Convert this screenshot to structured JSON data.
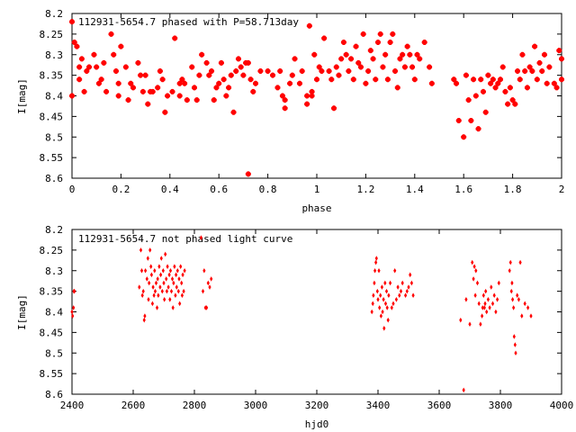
{
  "chart_data": [
    {
      "type": "scatter",
      "title": "112931-5654.7 phased with P=58.713day",
      "xlabel": "phase",
      "ylabel": "I[mag]",
      "xlim": [
        0,
        2
      ],
      "ylim": [
        8.6,
        8.2
      ],
      "y_inverted": true,
      "grid": false,
      "marker_color": "#ff0000",
      "marker": "filled-diamond",
      "x_ticks": [
        "0",
        "0.2",
        "0.4",
        "0.6",
        "0.8",
        "1",
        "1.2",
        "1.4",
        "1.6",
        "1.8",
        "2"
      ],
      "y_ticks": [
        "8.2",
        "8.25",
        "8.3",
        "8.35",
        "8.4",
        "8.45",
        "8.5",
        "8.55",
        "8.6"
      ],
      "points": [
        [
          0.0,
          8.22
        ],
        [
          0.0,
          8.4
        ],
        [
          0.01,
          8.27
        ],
        [
          0.02,
          8.28
        ],
        [
          0.03,
          8.33
        ],
        [
          0.03,
          8.36
        ],
        [
          0.04,
          8.31
        ],
        [
          0.05,
          8.39
        ],
        [
          0.06,
          8.34
        ],
        [
          0.07,
          8.33
        ],
        [
          0.09,
          8.3
        ],
        [
          0.1,
          8.33
        ],
        [
          0.11,
          8.37
        ],
        [
          0.12,
          8.36
        ],
        [
          0.13,
          8.32
        ],
        [
          0.14,
          8.39
        ],
        [
          0.16,
          8.25
        ],
        [
          0.17,
          8.3
        ],
        [
          0.18,
          8.34
        ],
        [
          0.19,
          8.37
        ],
        [
          0.19,
          8.4
        ],
        [
          0.2,
          8.28
        ],
        [
          0.22,
          8.33
        ],
        [
          0.23,
          8.41
        ],
        [
          0.24,
          8.37
        ],
        [
          0.25,
          8.38
        ],
        [
          0.27,
          8.32
        ],
        [
          0.28,
          8.35
        ],
        [
          0.29,
          8.39
        ],
        [
          0.3,
          8.35
        ],
        [
          0.31,
          8.42
        ],
        [
          0.32,
          8.39
        ],
        [
          0.33,
          8.39
        ],
        [
          0.35,
          8.38
        ],
        [
          0.36,
          8.34
        ],
        [
          0.37,
          8.36
        ],
        [
          0.38,
          8.44
        ],
        [
          0.39,
          8.4
        ],
        [
          0.41,
          8.39
        ],
        [
          0.42,
          8.26
        ],
        [
          0.44,
          8.37
        ],
        [
          0.44,
          8.4
        ],
        [
          0.45,
          8.36
        ],
        [
          0.46,
          8.37
        ],
        [
          0.47,
          8.41
        ],
        [
          0.49,
          8.33
        ],
        [
          0.5,
          8.38
        ],
        [
          0.51,
          8.41
        ],
        [
          0.52,
          8.35
        ],
        [
          0.53,
          8.3
        ],
        [
          0.55,
          8.32
        ],
        [
          0.56,
          8.35
        ],
        [
          0.57,
          8.34
        ],
        [
          0.58,
          8.41
        ],
        [
          0.59,
          8.38
        ],
        [
          0.6,
          8.37
        ],
        [
          0.61,
          8.32
        ],
        [
          0.62,
          8.36
        ],
        [
          0.63,
          8.4
        ],
        [
          0.64,
          8.38
        ],
        [
          0.65,
          8.35
        ],
        [
          0.66,
          8.44
        ],
        [
          0.67,
          8.34
        ],
        [
          0.68,
          8.31
        ],
        [
          0.69,
          8.33
        ],
        [
          0.7,
          8.35
        ],
        [
          0.71,
          8.32
        ],
        [
          0.72,
          8.32
        ],
        [
          0.72,
          8.59
        ],
        [
          0.73,
          8.36
        ],
        [
          0.74,
          8.39
        ],
        [
          0.75,
          8.37
        ],
        [
          0.77,
          8.34
        ],
        [
          0.8,
          8.34
        ],
        [
          0.82,
          8.35
        ],
        [
          0.84,
          8.38
        ],
        [
          0.85,
          8.34
        ],
        [
          0.86,
          8.4
        ],
        [
          0.87,
          8.41
        ],
        [
          0.87,
          8.43
        ],
        [
          0.89,
          8.37
        ],
        [
          0.9,
          8.35
        ],
        [
          0.91,
          8.31
        ],
        [
          0.93,
          8.37
        ],
        [
          0.94,
          8.34
        ],
        [
          0.96,
          8.4
        ],
        [
          0.96,
          8.42
        ],
        [
          0.97,
          8.23
        ],
        [
          0.98,
          8.4
        ],
        [
          0.98,
          8.39
        ],
        [
          0.99,
          8.3
        ],
        [
          1.0,
          8.36
        ],
        [
          1.01,
          8.33
        ],
        [
          1.02,
          8.34
        ],
        [
          1.03,
          8.26
        ],
        [
          1.05,
          8.34
        ],
        [
          1.06,
          8.36
        ],
        [
          1.07,
          8.43
        ],
        [
          1.08,
          8.33
        ],
        [
          1.09,
          8.35
        ],
        [
          1.1,
          8.31
        ],
        [
          1.11,
          8.27
        ],
        [
          1.12,
          8.3
        ],
        [
          1.13,
          8.34
        ],
        [
          1.14,
          8.31
        ],
        [
          1.15,
          8.36
        ],
        [
          1.16,
          8.28
        ],
        [
          1.17,
          8.32
        ],
        [
          1.18,
          8.33
        ],
        [
          1.19,
          8.25
        ],
        [
          1.2,
          8.37
        ],
        [
          1.21,
          8.34
        ],
        [
          1.22,
          8.29
        ],
        [
          1.23,
          8.31
        ],
        [
          1.24,
          8.36
        ],
        [
          1.25,
          8.27
        ],
        [
          1.26,
          8.25
        ],
        [
          1.27,
          8.33
        ],
        [
          1.28,
          8.3
        ],
        [
          1.29,
          8.36
        ],
        [
          1.3,
          8.27
        ],
        [
          1.31,
          8.25
        ],
        [
          1.32,
          8.34
        ],
        [
          1.33,
          8.38
        ],
        [
          1.34,
          8.31
        ],
        [
          1.35,
          8.3
        ],
        [
          1.36,
          8.33
        ],
        [
          1.37,
          8.28
        ],
        [
          1.38,
          8.3
        ],
        [
          1.39,
          8.33
        ],
        [
          1.4,
          8.36
        ],
        [
          1.41,
          8.3
        ],
        [
          1.42,
          8.31
        ],
        [
          1.44,
          8.27
        ],
        [
          1.46,
          8.33
        ],
        [
          1.47,
          8.37
        ],
        [
          1.56,
          8.36
        ],
        [
          1.57,
          8.37
        ],
        [
          1.58,
          8.46
        ],
        [
          1.6,
          8.5
        ],
        [
          1.61,
          8.35
        ],
        [
          1.62,
          8.41
        ],
        [
          1.63,
          8.46
        ],
        [
          1.64,
          8.36
        ],
        [
          1.65,
          8.4
        ],
        [
          1.66,
          8.48
        ],
        [
          1.67,
          8.36
        ],
        [
          1.68,
          8.39
        ],
        [
          1.69,
          8.44
        ],
        [
          1.7,
          8.35
        ],
        [
          1.71,
          8.37
        ],
        [
          1.72,
          8.36
        ],
        [
          1.73,
          8.38
        ],
        [
          1.74,
          8.37
        ],
        [
          1.75,
          8.36
        ],
        [
          1.76,
          8.33
        ],
        [
          1.77,
          8.39
        ],
        [
          1.78,
          8.42
        ],
        [
          1.79,
          8.38
        ],
        [
          1.8,
          8.41
        ],
        [
          1.81,
          8.42
        ],
        [
          1.82,
          8.34
        ],
        [
          1.83,
          8.36
        ],
        [
          1.84,
          8.3
        ],
        [
          1.85,
          8.34
        ],
        [
          1.86,
          8.38
        ],
        [
          1.87,
          8.33
        ],
        [
          1.88,
          8.34
        ],
        [
          1.89,
          8.28
        ],
        [
          1.9,
          8.36
        ],
        [
          1.91,
          8.32
        ],
        [
          1.92,
          8.34
        ],
        [
          1.93,
          8.3
        ],
        [
          1.94,
          8.37
        ],
        [
          1.95,
          8.33
        ],
        [
          1.97,
          8.37
        ],
        [
          1.98,
          8.38
        ],
        [
          1.99,
          8.29
        ],
        [
          2.0,
          8.31
        ],
        [
          2.0,
          8.36
        ]
      ]
    },
    {
      "type": "scatter",
      "title": "112931-5654.7 not phased light curve",
      "xlabel": "hjd0",
      "ylabel": "I[mag]",
      "xlim": [
        2400,
        4000
      ],
      "ylim": [
        8.6,
        8.2
      ],
      "y_inverted": true,
      "grid": false,
      "marker_color": "#ff0000",
      "marker": "diamond",
      "x_ticks": [
        "2400",
        "2600",
        "2800",
        "3000",
        "3200",
        "3400",
        "3600",
        "3800",
        "4000"
      ],
      "y_ticks": [
        "8.2",
        "8.25",
        "8.3",
        "8.35",
        "8.4",
        "8.45",
        "8.5",
        "8.55",
        "8.6"
      ],
      "points": [
        [
          2400,
          8.4
        ],
        [
          2402,
          8.41
        ],
        [
          2405,
          8.39
        ],
        [
          2406,
          8.35
        ],
        [
          2408,
          8.35
        ],
        [
          2620,
          8.34
        ],
        [
          2625,
          8.25
        ],
        [
          2628,
          8.3
        ],
        [
          2630,
          8.36
        ],
        [
          2633,
          8.35
        ],
        [
          2636,
          8.42
        ],
        [
          2638,
          8.41
        ],
        [
          2640,
          8.3
        ],
        [
          2645,
          8.32
        ],
        [
          2648,
          8.27
        ],
        [
          2650,
          8.37
        ],
        [
          2652,
          8.33
        ],
        [
          2655,
          8.25
        ],
        [
          2658,
          8.29
        ],
        [
          2660,
          8.31
        ],
        [
          2663,
          8.38
        ],
        [
          2665,
          8.34
        ],
        [
          2668,
          8.36
        ],
        [
          2670,
          8.3
        ],
        [
          2672,
          8.35
        ],
        [
          2675,
          8.33
        ],
        [
          2678,
          8.39
        ],
        [
          2680,
          8.32
        ],
        [
          2682,
          8.36
        ],
        [
          2685,
          8.29
        ],
        [
          2688,
          8.34
        ],
        [
          2690,
          8.31
        ],
        [
          2692,
          8.27
        ],
        [
          2695,
          8.35
        ],
        [
          2698,
          8.3
        ],
        [
          2700,
          8.33
        ],
        [
          2702,
          8.37
        ],
        [
          2705,
          8.26
        ],
        [
          2708,
          8.32
        ],
        [
          2710,
          8.35
        ],
        [
          2712,
          8.29
        ],
        [
          2715,
          8.34
        ],
        [
          2718,
          8.31
        ],
        [
          2720,
          8.37
        ],
        [
          2722,
          8.3
        ],
        [
          2725,
          8.35
        ],
        [
          2728,
          8.32
        ],
        [
          2730,
          8.39
        ],
        [
          2732,
          8.33
        ],
        [
          2735,
          8.29
        ],
        [
          2738,
          8.36
        ],
        [
          2740,
          8.31
        ],
        [
          2742,
          8.34
        ],
        [
          2745,
          8.3
        ],
        [
          2748,
          8.35
        ],
        [
          2750,
          8.32
        ],
        [
          2752,
          8.38
        ],
        [
          2755,
          8.29
        ],
        [
          2758,
          8.33
        ],
        [
          2760,
          8.36
        ],
        [
          2762,
          8.31
        ],
        [
          2765,
          8.35
        ],
        [
          2768,
          8.3
        ],
        [
          2822,
          8.22
        ],
        [
          2828,
          8.35
        ],
        [
          2832,
          8.3
        ],
        [
          2836,
          8.39
        ],
        [
          2840,
          8.39
        ],
        [
          2845,
          8.33
        ],
        [
          2850,
          8.34
        ],
        [
          2855,
          8.32
        ],
        [
          3380,
          8.4
        ],
        [
          3383,
          8.38
        ],
        [
          3385,
          8.36
        ],
        [
          3388,
          8.33
        ],
        [
          3390,
          8.3
        ],
        [
          3393,
          8.28
        ],
        [
          3395,
          8.27
        ],
        [
          3398,
          8.35
        ],
        [
          3400,
          8.37
        ],
        [
          3403,
          8.3
        ],
        [
          3405,
          8.39
        ],
        [
          3408,
          8.36
        ],
        [
          3410,
          8.41
        ],
        [
          3413,
          8.34
        ],
        [
          3415,
          8.4
        ],
        [
          3418,
          8.37
        ],
        [
          3420,
          8.44
        ],
        [
          3423,
          8.33
        ],
        [
          3425,
          8.38
        ],
        [
          3428,
          8.35
        ],
        [
          3430,
          8.39
        ],
        [
          3433,
          8.42
        ],
        [
          3435,
          8.36
        ],
        [
          3440,
          8.33
        ],
        [
          3445,
          8.39
        ],
        [
          3450,
          8.38
        ],
        [
          3455,
          8.3
        ],
        [
          3460,
          8.37
        ],
        [
          3465,
          8.34
        ],
        [
          3470,
          8.36
        ],
        [
          3475,
          8.35
        ],
        [
          3480,
          8.33
        ],
        [
          3490,
          8.36
        ],
        [
          3495,
          8.35
        ],
        [
          3500,
          8.34
        ],
        [
          3505,
          8.31
        ],
        [
          3510,
          8.33
        ],
        [
          3515,
          8.36
        ],
        [
          3670,
          8.42
        ],
        [
          3680,
          8.59
        ],
        [
          3688,
          8.37
        ],
        [
          3700,
          8.43
        ],
        [
          3708,
          8.28
        ],
        [
          3712,
          8.32
        ],
        [
          3715,
          8.29
        ],
        [
          3718,
          8.36
        ],
        [
          3720,
          8.3
        ],
        [
          3725,
          8.33
        ],
        [
          3730,
          8.38
        ],
        [
          3735,
          8.43
        ],
        [
          3740,
          8.41
        ],
        [
          3742,
          8.39
        ],
        [
          3745,
          8.36
        ],
        [
          3748,
          8.39
        ],
        [
          3750,
          8.38
        ],
        [
          3752,
          8.35
        ],
        [
          3755,
          8.4
        ],
        [
          3760,
          8.37
        ],
        [
          3765,
          8.39
        ],
        [
          3770,
          8.34
        ],
        [
          3775,
          8.38
        ],
        [
          3780,
          8.36
        ],
        [
          3785,
          8.4
        ],
        [
          3790,
          8.37
        ],
        [
          3795,
          8.33
        ],
        [
          3830,
          8.3
        ],
        [
          3833,
          8.28
        ],
        [
          3836,
          8.35
        ],
        [
          3838,
          8.33
        ],
        [
          3840,
          8.37
        ],
        [
          3843,
          8.39
        ],
        [
          3845,
          8.46
        ],
        [
          3848,
          8.48
        ],
        [
          3850,
          8.5
        ],
        [
          3855,
          8.36
        ],
        [
          3860,
          8.37
        ],
        [
          3865,
          8.28
        ],
        [
          3870,
          8.41
        ],
        [
          3880,
          8.38
        ],
        [
          3890,
          8.39
        ],
        [
          3900,
          8.41
        ]
      ]
    }
  ]
}
